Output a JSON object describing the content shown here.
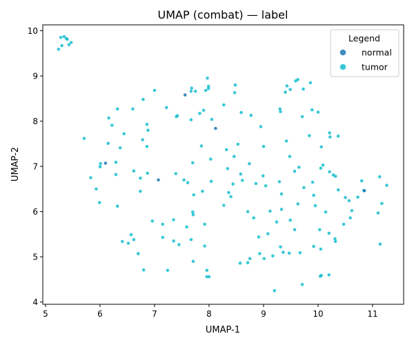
{
  "chart_data": {
    "type": "scatter",
    "title": "UMAP (combat) — label",
    "xlabel": "UMAP-1",
    "ylabel": "UMAP-2",
    "xlim": [
      4.95,
      11.57
    ],
    "ylim": [
      3.95,
      10.13
    ],
    "xticks": [
      5,
      6,
      7,
      8,
      9,
      10,
      11
    ],
    "yticks": [
      4,
      5,
      6,
      7,
      8,
      9,
      10
    ],
    "grid": false,
    "legend": {
      "title": "Legend",
      "placement": "top-right",
      "entries": [
        {
          "label": "normal",
          "color": "#1f77b4"
        },
        {
          "label": "tumor",
          "color": "#17becf"
        }
      ]
    },
    "series": [
      {
        "name": "normal",
        "color": "#1f77b4",
        "points": [
          [
            7.56,
            8.58
          ],
          [
            8.12,
            7.84
          ],
          [
            7.07,
            6.7
          ],
          [
            6.1,
            7.07
          ],
          [
            10.85,
            6.46
          ]
        ]
      },
      {
        "name": "tumor",
        "color": "#17becf",
        "points": [
          [
            5.24,
            9.59
          ],
          [
            5.28,
            9.85
          ],
          [
            5.3,
            9.67
          ],
          [
            5.34,
            9.87
          ],
          [
            5.38,
            9.83
          ],
          [
            5.4,
            9.81
          ],
          [
            5.43,
            9.69
          ],
          [
            5.47,
            9.74
          ],
          [
            7.0,
            8.68
          ],
          [
            7.68,
            8.73
          ],
          [
            7.67,
            8.66
          ],
          [
            7.75,
            8.66
          ],
          [
            7.94,
            8.68
          ],
          [
            7.97,
            8.95
          ],
          [
            7.99,
            8.77
          ],
          [
            7.99,
            8.72
          ],
          [
            8.48,
            8.8
          ],
          [
            8.47,
            8.63
          ],
          [
            9.43,
            8.78
          ],
          [
            9.4,
            8.64
          ],
          [
            9.49,
            8.7
          ],
          [
            9.59,
            8.89
          ],
          [
            9.63,
            8.92
          ],
          [
            9.73,
            8.71
          ],
          [
            9.86,
            8.85
          ],
          [
            6.16,
            8.07
          ],
          [
            6.32,
            8.27
          ],
          [
            6.22,
            7.91
          ],
          [
            6.44,
            7.72
          ],
          [
            6.6,
            8.27
          ],
          [
            6.79,
            8.48
          ],
          [
            6.86,
            7.93
          ],
          [
            6.88,
            7.8
          ],
          [
            7.22,
            8.3
          ],
          [
            7.4,
            8.1
          ],
          [
            7.42,
            8.12
          ],
          [
            7.67,
            8.03
          ],
          [
            7.83,
            8.17
          ],
          [
            7.9,
            8.24
          ],
          [
            8.05,
            8.04
          ],
          [
            8.27,
            8.36
          ],
          [
            8.59,
            8.19
          ],
          [
            8.77,
            8.13
          ],
          [
            8.95,
            7.88
          ],
          [
            9.3,
            8.27
          ],
          [
            9.31,
            8.21
          ],
          [
            9.71,
            8.1
          ],
          [
            9.89,
            8.25
          ],
          [
            10.21,
            7.74
          ],
          [
            10.22,
            7.65
          ],
          [
            10.37,
            7.67
          ],
          [
            10.06,
            7.43
          ],
          [
            9.42,
            7.56
          ],
          [
            9.84,
            7.68
          ],
          [
            5.71,
            7.62
          ],
          [
            6.15,
            7.51
          ],
          [
            6.37,
            7.41
          ],
          [
            6.78,
            7.59
          ],
          [
            6.86,
            7.44
          ],
          [
            7.7,
            7.08
          ],
          [
            7.86,
            7.45
          ],
          [
            8.03,
            7.16
          ],
          [
            8.32,
            7.37
          ],
          [
            8.46,
            7.22
          ],
          [
            8.53,
            7.49
          ],
          [
            8.74,
            7.06
          ],
          [
            9.0,
            7.44
          ],
          [
            9.48,
            7.22
          ],
          [
            9.65,
            6.98
          ],
          [
            10.05,
            6.96
          ],
          [
            10.09,
            7.03
          ],
          [
            6.0,
            6.99
          ],
          [
            6.01,
            7.06
          ],
          [
            6.29,
            7.09
          ],
          [
            6.29,
            6.82
          ],
          [
            6.62,
            6.9
          ],
          [
            6.74,
            6.74
          ],
          [
            6.87,
            6.85
          ],
          [
            7.39,
            6.84
          ],
          [
            7.54,
            6.7
          ],
          [
            7.61,
            6.64
          ],
          [
            7.72,
            6.37
          ],
          [
            7.88,
            6.45
          ],
          [
            8.04,
            6.67
          ],
          [
            8.34,
            6.95
          ],
          [
            8.36,
            6.42
          ],
          [
            8.4,
            6.33
          ],
          [
            8.44,
            6.61
          ],
          [
            8.58,
            6.83
          ],
          [
            8.61,
            6.69
          ],
          [
            8.86,
            6.62
          ],
          [
            8.99,
            6.79
          ],
          [
            9.04,
            6.57
          ],
          [
            9.29,
            6.66
          ],
          [
            9.33,
            6.39
          ],
          [
            9.57,
            6.89
          ],
          [
            9.74,
            6.53
          ],
          [
            9.9,
            6.65
          ],
          [
            9.92,
            6.36
          ],
          [
            10.21,
            6.88
          ],
          [
            10.28,
            6.81
          ],
          [
            10.32,
            6.78
          ],
          [
            10.37,
            6.48
          ],
          [
            10.5,
            6.31
          ],
          [
            10.57,
            6.24
          ],
          [
            10.73,
            6.32
          ],
          [
            10.8,
            6.68
          ],
          [
            10.84,
            6.47
          ],
          [
            11.13,
            6.77
          ],
          [
            11.26,
            6.58
          ],
          [
            5.83,
            6.75
          ],
          [
            5.93,
            6.5
          ],
          [
            6.74,
            6.45
          ],
          [
            5.99,
            6.2
          ],
          [
            6.32,
            6.12
          ],
          [
            9.63,
            6.17
          ],
          [
            9.95,
            6.13
          ],
          [
            10.14,
            5.99
          ],
          [
            10.62,
            6.02
          ],
          [
            11.17,
            6.18
          ],
          [
            11.1,
            5.97
          ],
          [
            10.59,
            5.86
          ],
          [
            10.47,
            5.72
          ],
          [
            8.27,
            6.14
          ],
          [
            8.71,
            6.0
          ],
          [
            8.82,
            5.86
          ],
          [
            9.12,
            6.01
          ],
          [
            9.33,
            6.05
          ],
          [
            9.49,
            5.81
          ],
          [
            9.24,
            5.77
          ],
          [
            7.7,
            5.99
          ],
          [
            7.71,
            5.93
          ],
          [
            7.59,
            5.66
          ],
          [
            7.92,
            5.72
          ],
          [
            6.96,
            5.79
          ],
          [
            7.15,
            5.72
          ],
          [
            7.35,
            5.82
          ],
          [
            6.41,
            5.34
          ],
          [
            6.52,
            5.3
          ],
          [
            6.57,
            5.49
          ],
          [
            6.62,
            5.38
          ],
          [
            6.7,
            5.07
          ],
          [
            6.8,
            4.71
          ],
          [
            7.15,
            5.43
          ],
          [
            7.35,
            5.35
          ],
          [
            7.45,
            5.27
          ],
          [
            7.67,
            5.38
          ],
          [
            7.24,
            4.7
          ],
          [
            7.71,
            4.9
          ],
          [
            7.92,
            5.24
          ],
          [
            7.96,
            4.7
          ],
          [
            7.96,
            4.56
          ],
          [
            8.0,
            4.56
          ],
          [
            8.57,
            4.86
          ],
          [
            8.71,
            4.87
          ],
          [
            8.75,
            4.96
          ],
          [
            8.91,
            5.44
          ],
          [
            8.93,
            5.07
          ],
          [
            9.01,
            4.96
          ],
          [
            9.08,
            5.51
          ],
          [
            9.17,
            5.02
          ],
          [
            9.2,
            4.25
          ],
          [
            9.31,
            5.22
          ],
          [
            9.36,
            5.1
          ],
          [
            9.47,
            5.08
          ],
          [
            9.57,
            5.6
          ],
          [
            9.67,
            5.09
          ],
          [
            9.71,
            4.39
          ],
          [
            9.92,
            5.23
          ],
          [
            10.03,
            5.6
          ],
          [
            10.04,
            4.57
          ],
          [
            10.06,
            4.59
          ],
          [
            10.05,
            5.17
          ],
          [
            10.2,
            4.6
          ],
          [
            10.2,
            5.52
          ],
          [
            10.31,
            5.4
          ],
          [
            10.32,
            5.34
          ],
          [
            11.14,
            5.28
          ],
          [
            10.0,
            8.2
          ]
        ]
      }
    ]
  }
}
